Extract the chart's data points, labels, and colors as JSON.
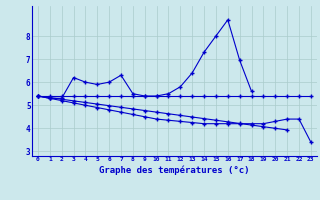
{
  "title": "Graphe des températures (°c)",
  "background_color": "#cce8ec",
  "grid_color": "#aacccc",
  "line_color": "#0000cc",
  "x_hours": [
    0,
    1,
    2,
    3,
    4,
    5,
    6,
    7,
    8,
    9,
    10,
    11,
    12,
    13,
    14,
    15,
    16,
    17,
    18,
    19,
    20,
    21,
    22,
    23
  ],
  "line1": [
    5.4,
    5.3,
    5.3,
    6.2,
    6.0,
    5.9,
    6.0,
    6.3,
    5.5,
    5.4,
    5.4,
    5.5,
    5.8,
    6.4,
    7.3,
    8.0,
    8.7,
    6.95,
    5.6,
    null,
    null,
    null,
    null,
    null
  ],
  "line2": [
    5.4,
    5.4,
    5.4,
    5.4,
    5.4,
    5.4,
    5.4,
    5.4,
    5.4,
    5.4,
    5.4,
    5.4,
    5.4,
    5.4,
    5.4,
    5.4,
    5.4,
    5.4,
    5.4,
    5.4,
    5.4,
    5.4,
    5.4,
    5.4
  ],
  "line3": [
    5.4,
    5.33,
    5.26,
    5.19,
    5.12,
    5.05,
    4.98,
    4.91,
    4.84,
    4.77,
    4.7,
    4.63,
    4.56,
    4.49,
    4.42,
    4.35,
    4.28,
    4.21,
    4.14,
    4.07,
    4.0,
    3.93,
    null,
    null
  ],
  "line4": [
    5.4,
    5.3,
    5.2,
    5.1,
    5.0,
    4.9,
    4.8,
    4.7,
    4.6,
    4.5,
    4.4,
    4.35,
    4.3,
    4.25,
    4.2,
    4.2,
    4.2,
    4.2,
    4.2,
    4.2,
    4.3,
    4.4,
    4.4,
    3.4
  ],
  "ylim": [
    2.8,
    9.3
  ],
  "yticks": [
    3,
    4,
    5,
    6,
    7,
    8
  ],
  "xlim": [
    -0.5,
    23.5
  ],
  "figsize": [
    3.2,
    2.0
  ],
  "dpi": 100
}
